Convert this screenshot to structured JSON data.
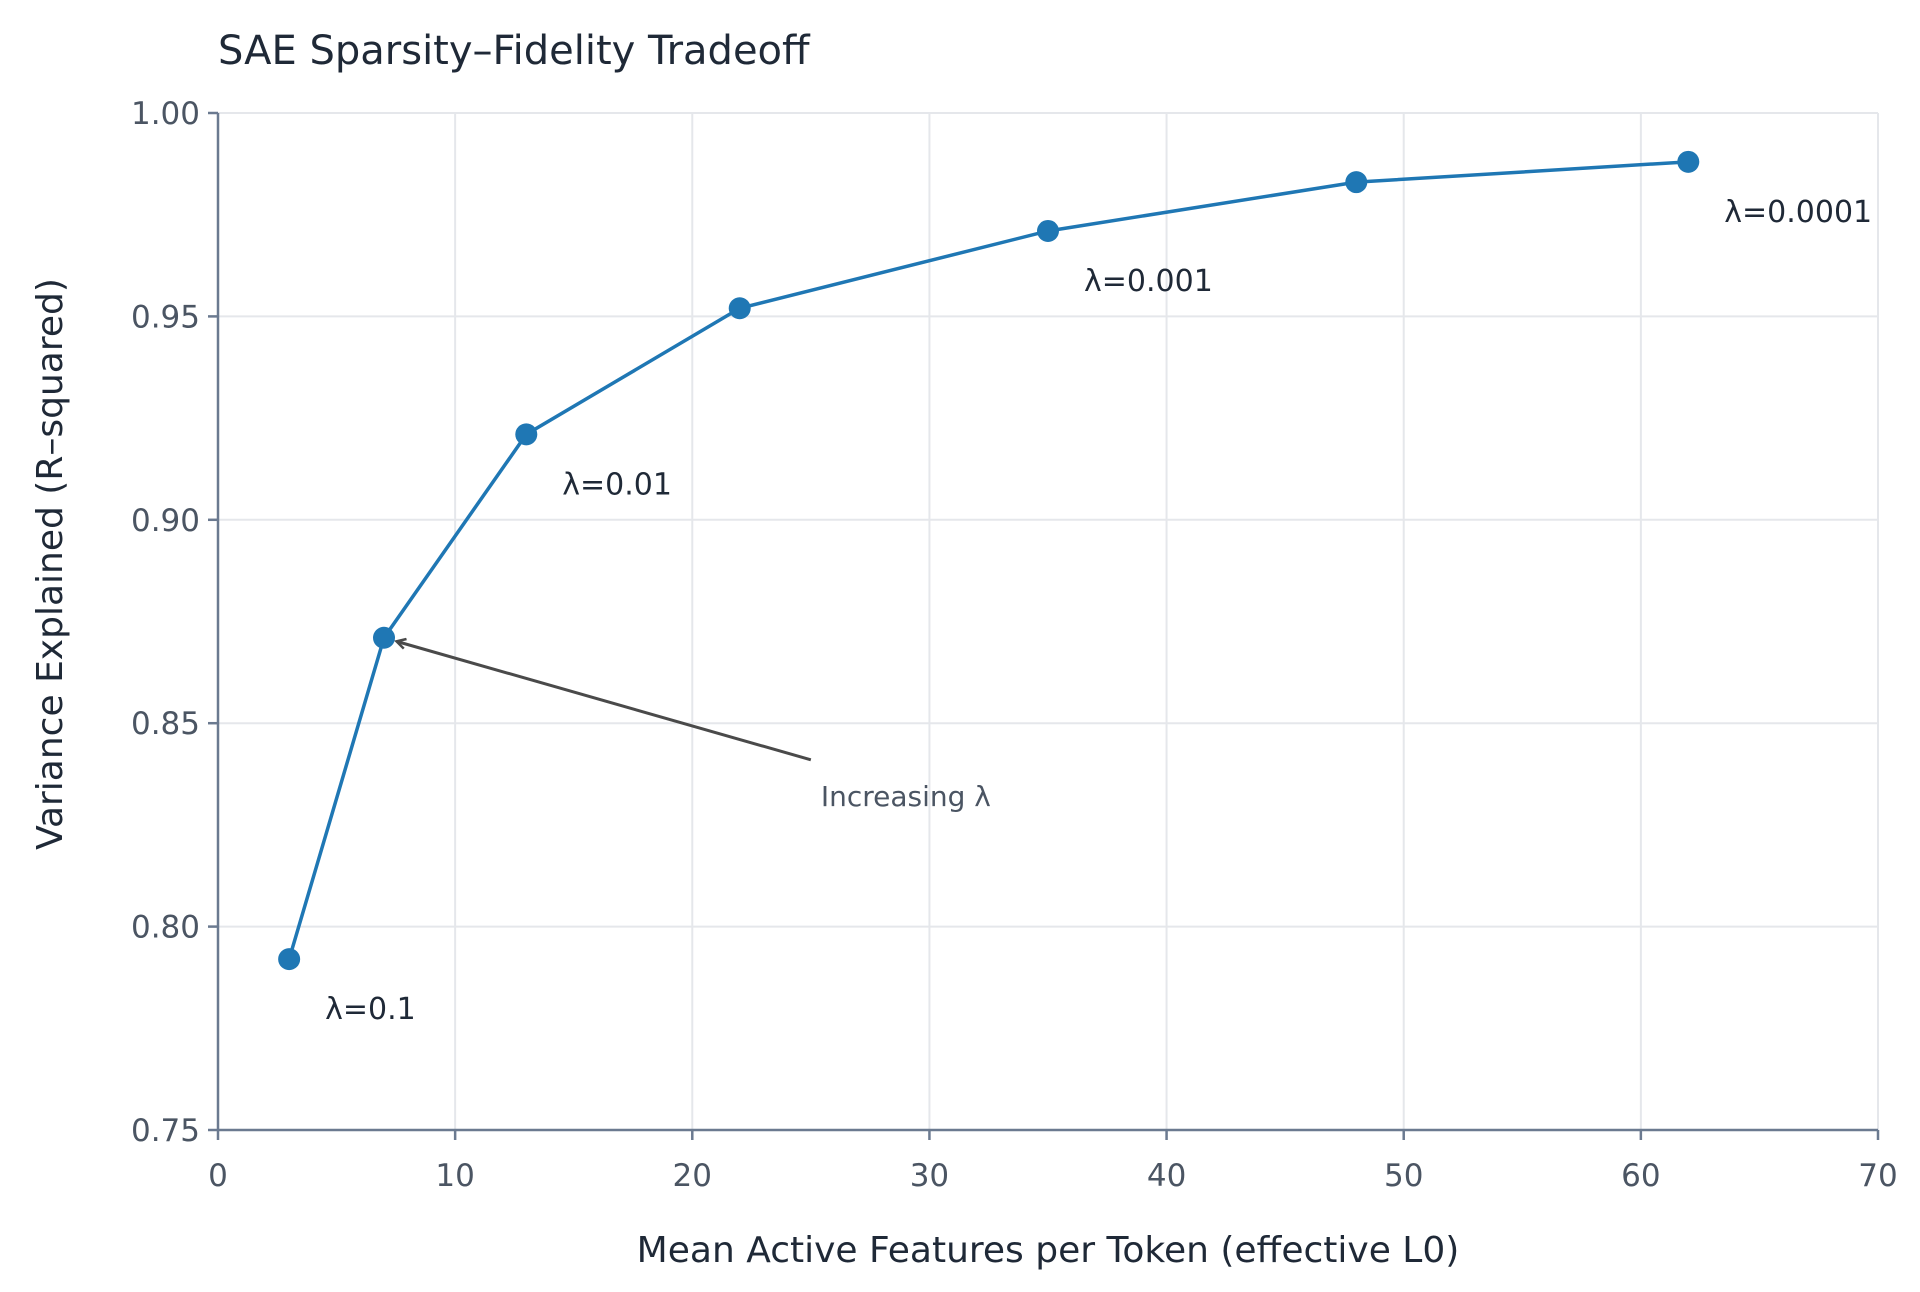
{
  "chart_data": {
    "type": "line",
    "title": "SAE Sparsity–Fidelity Tradeoff",
    "xlabel": "Mean Active Features per Token (effective L0)",
    "ylabel": "Variance Explained (R–squared)",
    "xlim": [
      0,
      70
    ],
    "ylim": [
      0.75,
      1.0
    ],
    "x_ticks": [
      0,
      10,
      20,
      30,
      40,
      50,
      60,
      70
    ],
    "x_tick_labels": [
      "0",
      "10",
      "20",
      "30",
      "40",
      "50",
      "60",
      "70"
    ],
    "y_ticks": [
      0.75,
      0.8,
      0.85,
      0.9,
      0.95,
      1.0
    ],
    "y_tick_labels": [
      "0.75",
      "0.80",
      "0.85",
      "0.90",
      "0.95",
      "1.00"
    ],
    "grid": true,
    "series": [
      {
        "color": "#1f77b4",
        "x": [
          3,
          7,
          13,
          22,
          35,
          48,
          62
        ],
        "y": [
          0.792,
          0.871,
          0.921,
          0.952,
          0.971,
          0.983,
          0.988
        ]
      }
    ],
    "point_labels": [
      {
        "text": "λ=0.1",
        "x": 3,
        "y": 0.792
      },
      {
        "text": "λ=0.01",
        "x": 13,
        "y": 0.921
      },
      {
        "text": "λ=0.001",
        "x": 35,
        "y": 0.971
      },
      {
        "text": "λ=0.0001",
        "x": 62,
        "y": 0.988
      }
    ],
    "annotation": {
      "text": "Increasing λ",
      "arrow_to": {
        "x": 7,
        "y": 0.871
      },
      "arrow_from": {
        "x": 25,
        "y": 0.841
      }
    }
  }
}
